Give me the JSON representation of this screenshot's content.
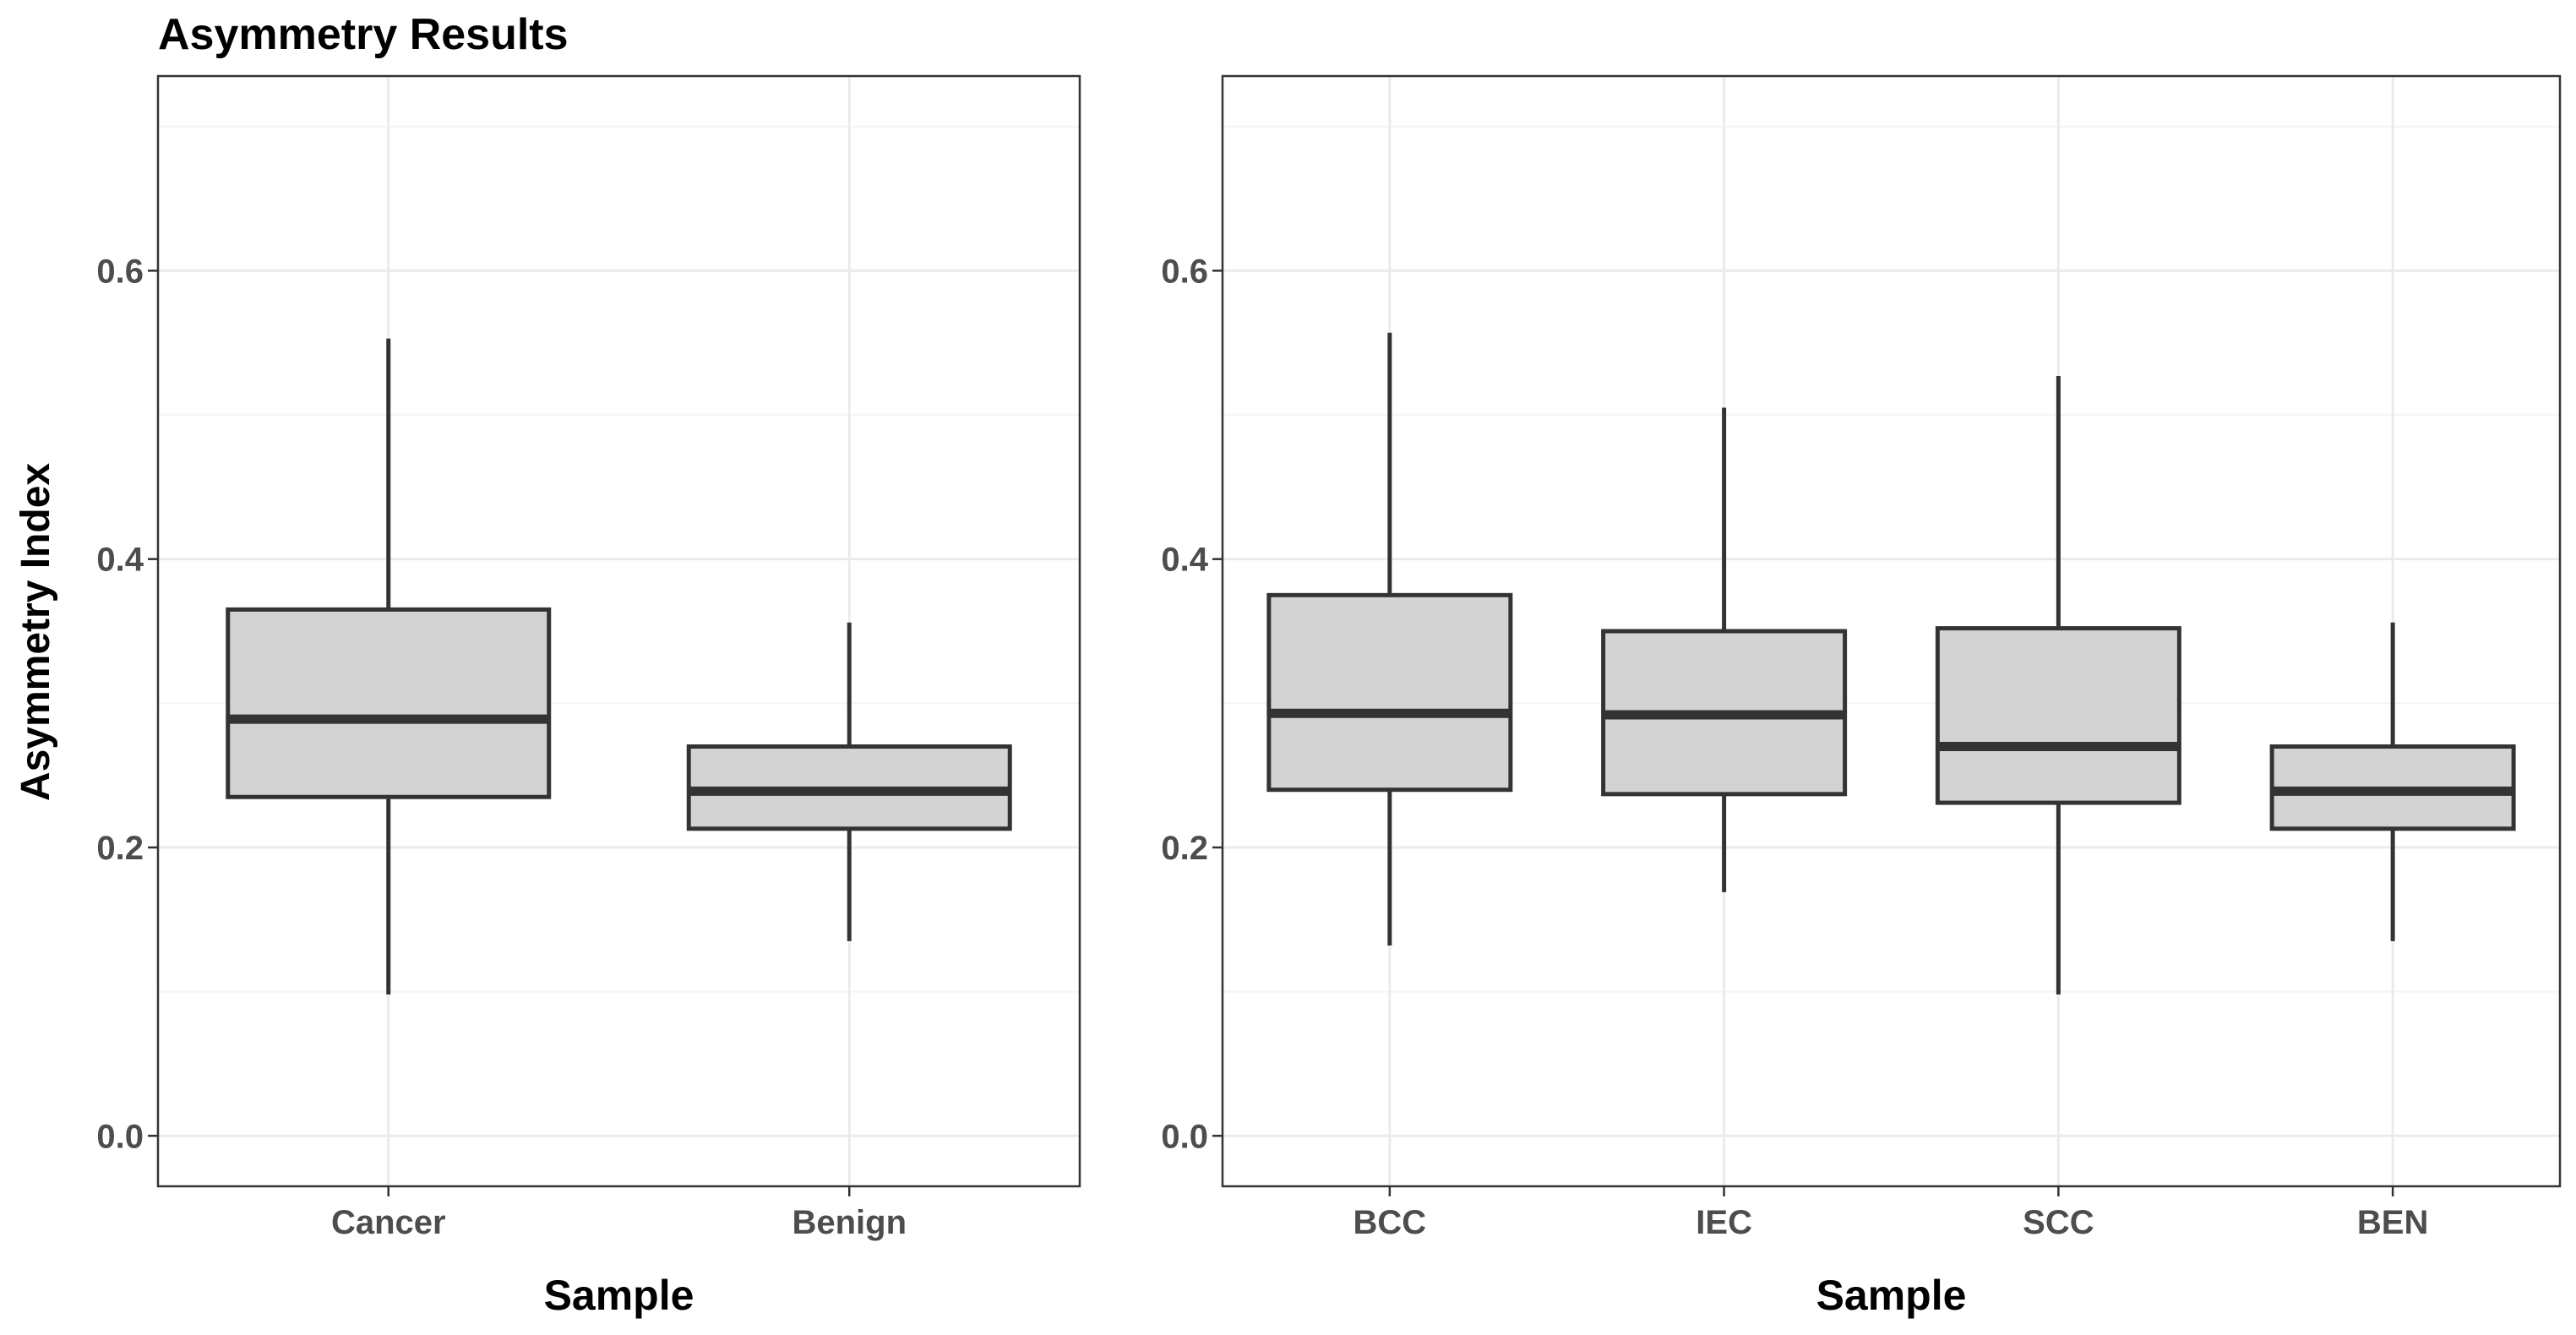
{
  "figure": {
    "title": "Asymmetry Results",
    "ylabel": "Asymmetry Index"
  },
  "chart_data": [
    {
      "type": "box",
      "title": "Asymmetry Results",
      "xlabel": "Sample",
      "ylabel": "Asymmetry Index",
      "ylim": [
        -0.035,
        0.735
      ],
      "yticks": [
        0.0,
        0.2,
        0.4,
        0.6
      ],
      "ytick_labels": [
        "0.0",
        "0.2",
        "0.4",
        "0.6"
      ],
      "grid": true,
      "categories": [
        "Cancer",
        "Benign"
      ],
      "boxes": [
        {
          "name": "Cancer",
          "min": 0.098,
          "q1": 0.235,
          "median": 0.289,
          "q3": 0.365,
          "max": 0.553
        },
        {
          "name": "Benign",
          "min": 0.135,
          "q1": 0.213,
          "median": 0.239,
          "q3": 0.27,
          "max": 0.356
        }
      ]
    },
    {
      "type": "box",
      "title": "",
      "xlabel": "Sample",
      "ylabel": "",
      "ylim": [
        -0.035,
        0.735
      ],
      "yticks": [
        0.0,
        0.2,
        0.4,
        0.6
      ],
      "ytick_labels": [
        "0.0",
        "0.2",
        "0.4",
        "0.6"
      ],
      "grid": true,
      "categories": [
        "BCC",
        "IEC",
        "SCC",
        "BEN"
      ],
      "boxes": [
        {
          "name": "BCC",
          "min": 0.132,
          "q1": 0.24,
          "median": 0.293,
          "q3": 0.375,
          "max": 0.557
        },
        {
          "name": "IEC",
          "min": 0.169,
          "q1": 0.237,
          "median": 0.292,
          "q3": 0.35,
          "max": 0.505
        },
        {
          "name": "SCC",
          "min": 0.098,
          "q1": 0.231,
          "median": 0.27,
          "q3": 0.352,
          "max": 0.527
        },
        {
          "name": "BEN",
          "min": 0.135,
          "q1": 0.213,
          "median": 0.239,
          "q3": 0.27,
          "max": 0.356
        }
      ]
    }
  ]
}
